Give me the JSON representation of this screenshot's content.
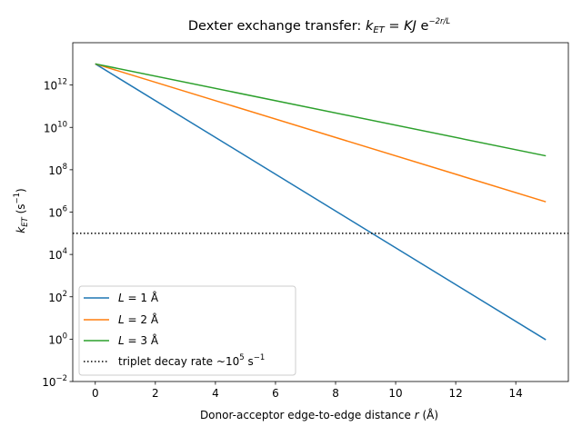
{
  "chart_data": {
    "type": "line",
    "title": {
      "text": "Dexter exchange transfer: ",
      "formula": {
        "k": "k",
        "k_sub": "ET",
        "eq": " = ",
        "KJ": "KJ",
        "e": " e",
        "exp": "−2r/L"
      }
    },
    "xlabel": {
      "text": "Donor-acceptor edge-to-edge distance ",
      "var": "r",
      "unit": " (Å)"
    },
    "ylabel": {
      "k": "k",
      "k_sub": "ET",
      "unit_open": " (s",
      "unit_exp": "−1",
      "unit_close": ")"
    },
    "xlim": [
      -0.75,
      15.75
    ],
    "ylim_log10": [
      -2,
      14
    ],
    "yscale": "log",
    "x_ticks": [
      "0",
      "2",
      "4",
      "6",
      "8",
      "10",
      "12",
      "14"
    ],
    "y_ticks": [
      {
        "base": "10",
        "exp": "−2"
      },
      {
        "base": "10",
        "exp": "0"
      },
      {
        "base": "10",
        "exp": "2"
      },
      {
        "base": "10",
        "exp": "4"
      },
      {
        "base": "10",
        "exp": "6"
      },
      {
        "base": "10",
        "exp": "8"
      },
      {
        "base": "10",
        "exp": "10"
      },
      {
        "base": "10",
        "exp": "12"
      }
    ],
    "grid": false,
    "legend_position": "lower-left",
    "series": [
      {
        "name_var": "L",
        "name_rest": " = 1 Å",
        "color": "#1f77b4",
        "x": [
          0,
          15
        ],
        "y": [
          10000000000000.0,
          0.935
        ]
      },
      {
        "name_var": "L",
        "name_rest": " = 2 Å",
        "color": "#ff7f0e",
        "x": [
          0,
          15
        ],
        "y": [
          10000000000000.0,
          3060000.0
        ]
      },
      {
        "name_var": "L",
        "name_rest": " = 3 Å",
        "color": "#2ca02c",
        "x": [
          0,
          15
        ],
        "y": [
          10000000000000.0,
          454000000.0
        ]
      }
    ],
    "hline": {
      "label": "triplet decay rate ~10",
      "label_exp": "5",
      "label_unit": " s",
      "label_unit_exp": "−1",
      "y": 100000,
      "style": "dotted",
      "color": "#000000"
    }
  }
}
